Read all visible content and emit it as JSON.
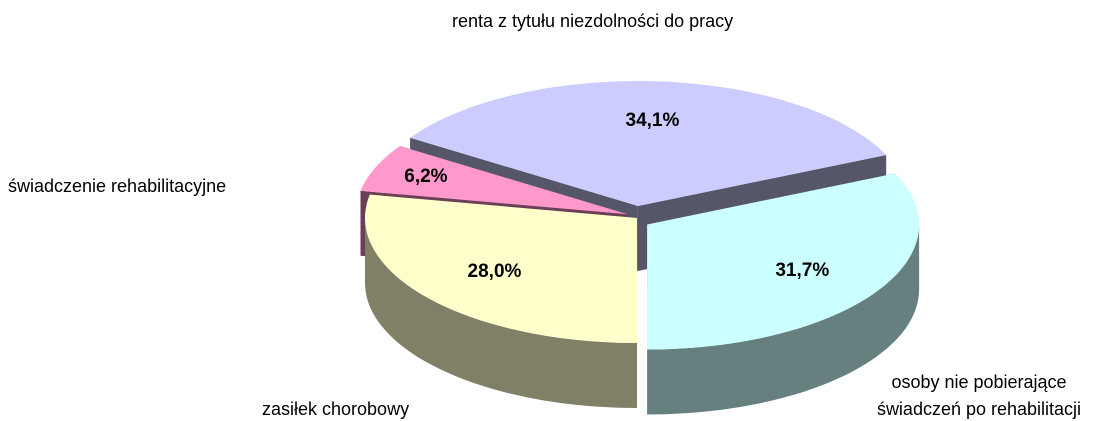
{
  "chart_data": {
    "type": "pie3d",
    "categories": [
      "zasiłek chorobowy",
      "świadczenie rehabilitacyjne",
      "renta z tytułu niezdolności do pracy",
      "osoby nie pobierające świadczeń po rehabilitacji"
    ],
    "values": [
      28.0,
      6.2,
      34.1,
      31.7
    ],
    "value_labels": [
      "28,0%",
      "6,2%",
      "34,1%",
      "31,7%"
    ],
    "colors": [
      "#ffffcc",
      "#ff99cc",
      "#ccccff",
      "#ccffff"
    ]
  }
}
